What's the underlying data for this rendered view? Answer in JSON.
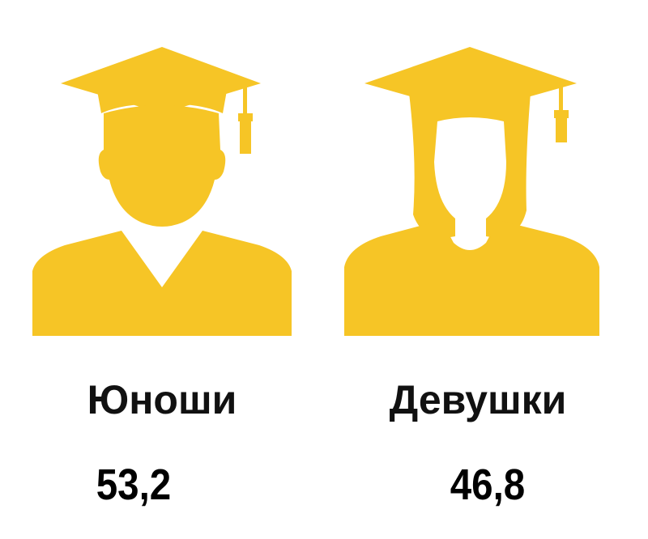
{
  "colors": {
    "icon": "#F6C526",
    "text": "#111111"
  },
  "groups": [
    {
      "icon": "male-graduate-icon",
      "label": "Юноши",
      "value": "53,2"
    },
    {
      "icon": "female-graduate-icon",
      "label": "Девушки",
      "value": "46,8"
    }
  ]
}
